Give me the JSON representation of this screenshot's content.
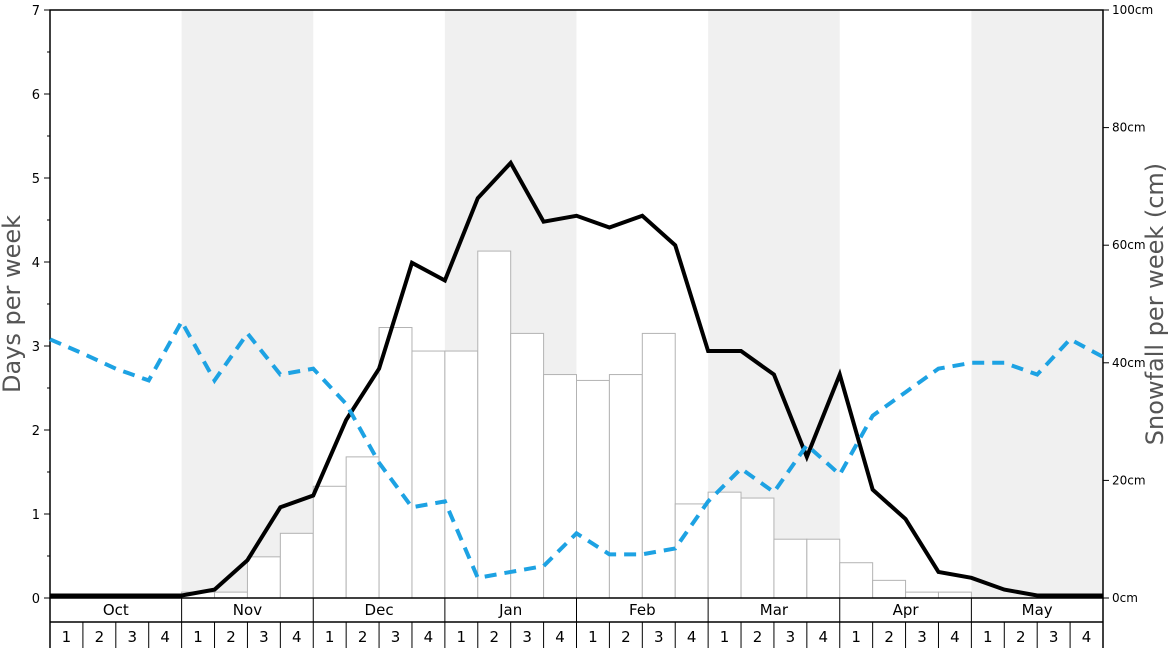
{
  "chart_data": {
    "type": "bar",
    "months": [
      "Oct",
      "Nov",
      "Dec",
      "Jan",
      "Feb",
      "Mar",
      "Apr",
      "May"
    ],
    "week_labels": [
      "1",
      "2",
      "3",
      "4"
    ],
    "y_left": {
      "label": "Days per week",
      "ylim": [
        0,
        7
      ],
      "ticks": [
        "0",
        "1",
        "2",
        "3",
        "4",
        "5",
        "6",
        "7"
      ]
    },
    "y_right": {
      "label": "Snowfall per week (cm)",
      "ylim": [
        0,
        100
      ],
      "ticks": [
        "0cm",
        "20cm",
        "40cm",
        "60cm",
        "80cm",
        "100cm"
      ]
    },
    "series": [
      {
        "kind": "bar",
        "axis": "right",
        "values": [
          0,
          0,
          0,
          0,
          1,
          1,
          7,
          11,
          19,
          24,
          46,
          42,
          42,
          59,
          45,
          38,
          37,
          38,
          45,
          16,
          18,
          17,
          10,
          10,
          6,
          3,
          1,
          1,
          0,
          0,
          0,
          0
        ],
        "color": "#ffffff",
        "stroke": "#b3b3b3"
      },
      {
        "kind": "line",
        "axis": "left",
        "style": "solid",
        "color": "#000000",
        "values": [
          0.03,
          0.03,
          0.03,
          0.03,
          0.03,
          0.1,
          0.45,
          1.08,
          1.22,
          2.12,
          2.73,
          3.99,
          3.78,
          4.76,
          5.18,
          4.48,
          4.55,
          4.41,
          4.55,
          4.2,
          2.94,
          2.94,
          2.66,
          1.68,
          2.66,
          1.29,
          0.94,
          0.31,
          0.24,
          0.1,
          0.03,
          0.03,
          0.03
        ]
      },
      {
        "kind": "line",
        "axis": "left",
        "style": "dashed",
        "color": "#1da2e3",
        "values": [
          3.08,
          2.91,
          2.73,
          2.59,
          3.29,
          2.59,
          3.15,
          2.66,
          2.73,
          2.31,
          1.61,
          1.08,
          1.15,
          0.24,
          0.31,
          0.38,
          0.77,
          0.52,
          0.52,
          0.59,
          1.15,
          1.54,
          1.26,
          1.82,
          1.47,
          2.17,
          2.45,
          2.73,
          2.8,
          2.8,
          2.66,
          3.08,
          2.87
        ]
      }
    ],
    "grid": "alternating month shading"
  }
}
